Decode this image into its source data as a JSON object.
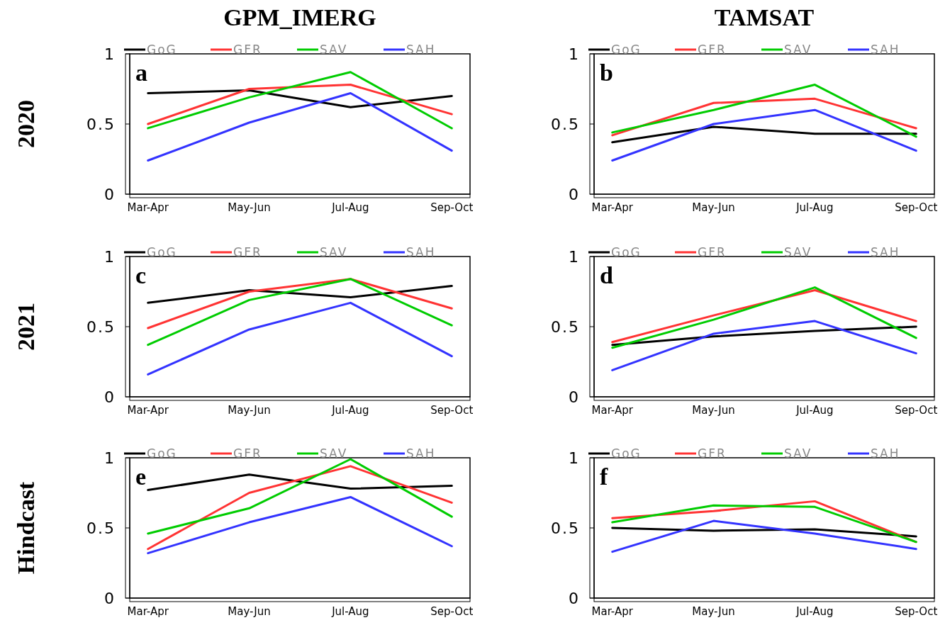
{
  "chart_data": [
    {
      "type": "line",
      "title": "GPM_IMERG",
      "ylabel": "2020",
      "annotations": [
        "a"
      ],
      "categories": [
        "Mar-Apr",
        "May-Jun",
        "Jul-Aug",
        "Sep-Oct"
      ],
      "ylim": [
        0,
        1
      ],
      "yticks": [
        0,
        0.5,
        1
      ],
      "legend": "top",
      "series": [
        {
          "name": "GoG",
          "color": "#000000",
          "values": [
            0.72,
            0.74,
            0.62,
            0.7
          ]
        },
        {
          "name": "GFR",
          "color": "#ff3333",
          "values": [
            0.5,
            0.75,
            0.78,
            0.57
          ]
        },
        {
          "name": "SAV",
          "color": "#00cc00",
          "values": [
            0.47,
            0.69,
            0.87,
            0.47
          ]
        },
        {
          "name": "SAH",
          "color": "#3333ff",
          "values": [
            0.24,
            0.51,
            0.72,
            0.31
          ]
        }
      ]
    },
    {
      "type": "line",
      "title": "TAMSAT",
      "annotations": [
        "b"
      ],
      "categories": [
        "Mar-Apr",
        "May-Jun",
        "Jul-Aug",
        "Sep-Oct"
      ],
      "ylim": [
        0,
        1
      ],
      "yticks": [
        0,
        0.5,
        1
      ],
      "legend": "top",
      "series": [
        {
          "name": "GoG",
          "color": "#000000",
          "values": [
            0.37,
            0.48,
            0.43,
            0.43
          ]
        },
        {
          "name": "GFR",
          "color": "#ff3333",
          "values": [
            0.42,
            0.65,
            0.68,
            0.47
          ]
        },
        {
          "name": "SAV",
          "color": "#00cc00",
          "values": [
            0.44,
            0.6,
            0.78,
            0.41
          ]
        },
        {
          "name": "SAH",
          "color": "#3333ff",
          "values": [
            0.24,
            0.5,
            0.6,
            0.31
          ]
        }
      ]
    },
    {
      "type": "line",
      "ylabel": "2021",
      "annotations": [
        "c"
      ],
      "categories": [
        "Mar-Apr",
        "May-Jun",
        "Jul-Aug",
        "Sep-Oct"
      ],
      "ylim": [
        0,
        1
      ],
      "yticks": [
        0,
        0.5,
        1
      ],
      "legend": "top",
      "series": [
        {
          "name": "GoG",
          "color": "#000000",
          "values": [
            0.67,
            0.76,
            0.71,
            0.79
          ]
        },
        {
          "name": "GFR",
          "color": "#ff3333",
          "values": [
            0.49,
            0.75,
            0.84,
            0.63
          ]
        },
        {
          "name": "SAV",
          "color": "#00cc00",
          "values": [
            0.37,
            0.69,
            0.84,
            0.51
          ]
        },
        {
          "name": "SAH",
          "color": "#3333ff",
          "values": [
            0.16,
            0.48,
            0.67,
            0.29
          ]
        }
      ]
    },
    {
      "type": "line",
      "annotations": [
        "d"
      ],
      "categories": [
        "Mar-Apr",
        "May-Jun",
        "Jul-Aug",
        "Sep-Oct"
      ],
      "ylim": [
        0,
        1
      ],
      "yticks": [
        0,
        0.5,
        1
      ],
      "legend": "top",
      "series": [
        {
          "name": "GoG",
          "color": "#000000",
          "values": [
            0.37,
            0.43,
            0.47,
            0.5
          ]
        },
        {
          "name": "GFR",
          "color": "#ff3333",
          "values": [
            0.39,
            0.58,
            0.76,
            0.54
          ]
        },
        {
          "name": "SAV",
          "color": "#00cc00",
          "values": [
            0.35,
            0.55,
            0.78,
            0.42
          ]
        },
        {
          "name": "SAH",
          "color": "#3333ff",
          "values": [
            0.19,
            0.45,
            0.54,
            0.31
          ]
        }
      ]
    },
    {
      "type": "line",
      "ylabel": "Hindcast",
      "annotations": [
        "e"
      ],
      "categories": [
        "Mar-Apr",
        "May-Jun",
        "Jul-Aug",
        "Sep-Oct"
      ],
      "ylim": [
        0,
        1
      ],
      "yticks": [
        0,
        0.5,
        1
      ],
      "legend": "top",
      "series": [
        {
          "name": "GoG",
          "color": "#000000",
          "values": [
            0.77,
            0.88,
            0.78,
            0.8
          ]
        },
        {
          "name": "GFR",
          "color": "#ff3333",
          "values": [
            0.35,
            0.75,
            0.94,
            0.68
          ]
        },
        {
          "name": "SAV",
          "color": "#00cc00",
          "values": [
            0.46,
            0.64,
            0.99,
            0.58
          ]
        },
        {
          "name": "SAH",
          "color": "#3333ff",
          "values": [
            0.32,
            0.54,
            0.72,
            0.37
          ]
        }
      ]
    },
    {
      "type": "line",
      "annotations": [
        "f"
      ],
      "categories": [
        "Mar-Apr",
        "May-Jun",
        "Jul-Aug",
        "Sep-Oct"
      ],
      "ylim": [
        0,
        1
      ],
      "yticks": [
        0,
        0.5,
        1
      ],
      "legend": "top",
      "series": [
        {
          "name": "GoG",
          "color": "#000000",
          "values": [
            0.5,
            0.48,
            0.49,
            0.44
          ]
        },
        {
          "name": "GFR",
          "color": "#ff3333",
          "values": [
            0.57,
            0.62,
            0.69,
            0.4
          ]
        },
        {
          "name": "SAV",
          "color": "#00cc00",
          "values": [
            0.54,
            0.66,
            0.65,
            0.4
          ]
        },
        {
          "name": "SAH",
          "color": "#3333ff",
          "values": [
            0.33,
            0.55,
            0.46,
            0.35
          ]
        }
      ]
    }
  ]
}
